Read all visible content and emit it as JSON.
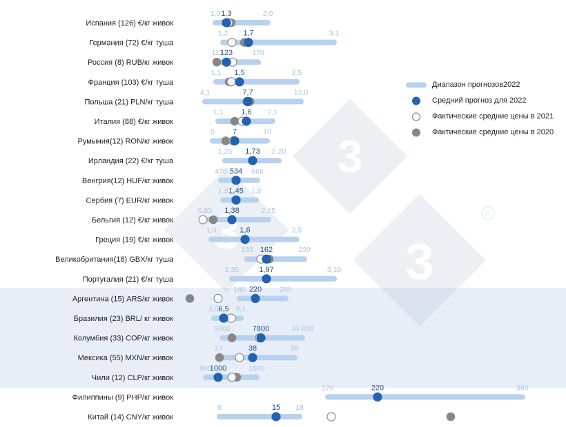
{
  "chart_data": {
    "type": "range-dot",
    "title": "",
    "xlabel": "",
    "ylabel": "",
    "legend": {
      "placement": "right",
      "items": [
        {
          "key": "range",
          "label": "Диапазон прогнозов2022"
        },
        {
          "key": "avg2022",
          "label": "Средний прогноз для 2022"
        },
        {
          "key": "act2021",
          "label": "Фактические средние цены в 2021"
        },
        {
          "key": "act2020",
          "label": "Фактические средние цены в 2020"
        }
      ]
    },
    "colors": {
      "range": "#b8d1ee",
      "range_text": "#a9c3e3",
      "avg": "#2262b0",
      "avg_text": "#1f4f8c",
      "act2021_stroke": "#8a8a8a",
      "act2020": "#878787",
      "label": "#1f1f1f",
      "band": "#e8eef7"
    },
    "groups": [
      {
        "name": "europe",
        "shaded": false,
        "rows": [
          0,
          13
        ]
      },
      {
        "name": "latin-america",
        "shaded": true,
        "rows": [
          14,
          18
        ]
      },
      {
        "name": "asia",
        "shaded": false,
        "rows": [
          19,
          20
        ]
      }
    ],
    "rows": [
      {
        "label": "Испания (126) €/кг живок",
        "min": 1.0,
        "avg": 1.3,
        "max": 2.0,
        "min_label": "1,0",
        "avg_label": "1,3",
        "max_label": "2,0",
        "x_min": 312,
        "x_max": 388,
        "x_avg": 328,
        "x_2021": 331,
        "x_2020": 335
      },
      {
        "label": "Германия (72) €/кг туша",
        "min": 1.2,
        "avg": 1.7,
        "max": 3.1,
        "min_label": "1,2",
        "avg_label": "1,7",
        "max_label": "3,1",
        "x_min": 323,
        "x_max": 484,
        "x_avg": 360,
        "x_2021": 336,
        "x_2020": 354
      },
      {
        "label": "Россия (8) RUB/кг живок",
        "min": 113,
        "avg": 123,
        "max": 170,
        "min_label": "113",
        "avg_label": "123",
        "max_label": "170",
        "x_min": 315,
        "x_max": 374,
        "x_avg": 328,
        "x_2021": 337,
        "x_2020": 314
      },
      {
        "label": "Франция (103) €/кг туша",
        "min": 1.1,
        "avg": 1.5,
        "max": 2.5,
        "min_label": "1,1",
        "avg_label": "1,5",
        "max_label": "2,5",
        "x_min": 313,
        "x_max": 430,
        "x_avg": 347,
        "x_2021": 335,
        "x_2020": 332
      },
      {
        "label": "Польша (21) PLN/кг туша",
        "min": 4.1,
        "avg": 7.7,
        "max": 12.0,
        "min_label": "4,1",
        "avg_label": "7,7",
        "max_label": "12,0",
        "x_min": 297,
        "x_max": 436,
        "x_avg": 359,
        "x_2021": 358,
        "x_2020": 362
      },
      {
        "label": "Италия (88) €/кг живок",
        "min": 1.1,
        "avg": 1.6,
        "max": 2.1,
        "min_label": "1,1",
        "avg_label": "1,6",
        "max_label": "2,1",
        "x_min": 316,
        "x_max": 395,
        "x_avg": 357,
        "x_2021": 351,
        "x_2020": 340
      },
      {
        "label": "Румыния(12) RON/кг живок",
        "min": 5,
        "avg": 7,
        "max": 10,
        "min_label": "5",
        "avg_label": "7",
        "max_label": "10",
        "x_min": 308,
        "x_max": 387,
        "x_avg": 340,
        "x_2021": 338,
        "x_2020": 327
      },
      {
        "label": "Ирландия (22) €/кг туша",
        "min": 1.25,
        "avg": 1.73,
        "max": 2.2,
        "min_label": "1,25",
        "avg_label": "1,73",
        "max_label": "2,20",
        "x_min": 326,
        "x_max": 404,
        "x_avg": 366,
        "x_2021": null,
        "x_2020": null
      },
      {
        "label": "Венгрия(12) HUF/кг живок",
        "min": 470,
        "avg": 534,
        "max": 666,
        "min_label": "470",
        "avg_label": "534",
        "max_label": "666",
        "x_min": 320,
        "x_max": 373,
        "x_avg": 342,
        "x_2021": null,
        "x_2020": null
      },
      {
        "label": "Сербия (7) EUR/кг живок",
        "min": 1.3,
        "avg": 1.45,
        "max": 1.8,
        "min_label": "1,3",
        "avg_label": "1,45",
        "max_label": "1,8",
        "x_min": 323,
        "x_max": 371,
        "x_avg": 342,
        "x_2021": null,
        "x_2020": null
      },
      {
        "label": "Бельгия (12) €/кг живок",
        "min": 0.85,
        "avg": 1.38,
        "max": 2.05,
        "min_label": "0,85",
        "avg_label": "1,38",
        "max_label": "2,05",
        "x_min": 297,
        "x_max": 389,
        "x_avg": 336,
        "x_2021": 294,
        "x_2020": 309
      },
      {
        "label": "Греция (19) €/кг живок",
        "min": 1.0,
        "avg": 1.6,
        "max": 2.5,
        "min_label": "1,0",
        "avg_label": "1,6",
        "max_label": "2,5",
        "x_min": 306,
        "x_max": 430,
        "x_avg": 355,
        "x_2021": null,
        "x_2020": null
      },
      {
        "label": "Великобритания(18) GBX/кг туша",
        "min": 133,
        "avg": 162,
        "max": 220,
        "min_label": "133",
        "avg_label": "162",
        "max_label": "220",
        "x_min": 358,
        "x_max": 441,
        "x_avg": 386,
        "x_2021": 378,
        "x_2020": 390
      },
      {
        "label": "Португалия (21) €/кг туша",
        "min": 1.35,
        "avg": 1.97,
        "max": 3.1,
        "min_label": "1,35",
        "avg_label": "1,97",
        "max_label": "3,10",
        "x_min": 336,
        "x_max": 484,
        "x_avg": 386,
        "x_2021": null,
        "x_2020": null
      },
      {
        "label": "Аргентина (15) ARS/кг живок",
        "min": 180,
        "avg": 220,
        "max": 285,
        "min_label": "180",
        "avg_label": "220",
        "max_label": "285",
        "x_min": 347,
        "x_max": 414,
        "x_avg": 370,
        "x_2021": 316,
        "x_2020": 275
      },
      {
        "label": "Бразилия (23) BRL/ кг живок",
        "min": 5.5,
        "avg": 6.5,
        "max": 8.1,
        "min_label": "5,5",
        "avg_label": "6,5",
        "max_label": "8,1",
        "x_min": 310,
        "x_max": 349,
        "x_avg": 324,
        "x_2021": 335,
        "x_2020": 325
      },
      {
        "label": "Колумбия (33) COP/кг живок",
        "min": 5000,
        "avg": 7800,
        "max": 10800,
        "min_label": "5000",
        "avg_label": "7800",
        "max_label": "10 800",
        "x_min": 322,
        "x_max": 438,
        "x_avg": 378,
        "x_2021": 376,
        "x_2020": 336
      },
      {
        "label": "Мексика (55) MXN/кг живок",
        "min": 27,
        "avg": 38,
        "max": 55,
        "min_label": "27",
        "avg_label": "38",
        "max_label": "55",
        "x_min": 317,
        "x_max": 427,
        "x_avg": 366,
        "x_2021": 347,
        "x_2020": 318
      },
      {
        "label": "Чили (12) CLP/кг живок",
        "min": 800,
        "avg": 1000,
        "max": 1600,
        "min_label": "800",
        "avg_label": "1000",
        "max_label": "1600",
        "x_min": 298,
        "x_max": 372,
        "x_avg": 316,
        "x_2021": 336,
        "x_2020": 343
      },
      {
        "label": "Филиппины (9) PHP/кг живок",
        "min": 170,
        "avg": 220,
        "max": 360,
        "min_label": "170",
        "avg_label": "220",
        "max_label": "360",
        "x_min": 475,
        "x_max": 757,
        "x_avg": 547,
        "x_2021": null,
        "x_2020": null
      },
      {
        "label": "Китай (14) CNY/кг живок",
        "min": 8,
        "avg": 15,
        "max": 18,
        "min_label": "8",
        "avg_label": "15",
        "max_label": "18",
        "x_min": 318,
        "x_max": 434,
        "x_avg": 400,
        "x_2021": 480,
        "x_2020": 653
      }
    ]
  }
}
